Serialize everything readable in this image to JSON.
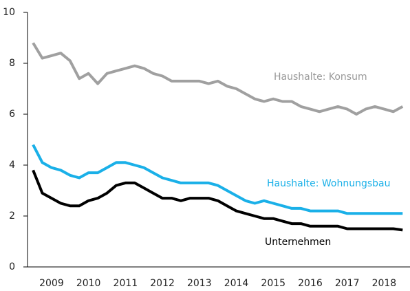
{
  "chart_data": {
    "type": "line",
    "x": [
      2009,
      2009.25,
      2009.5,
      2009.75,
      2010,
      2010.25,
      2010.5,
      2010.75,
      2011,
      2011.25,
      2011.5,
      2011.75,
      2012,
      2012.25,
      2012.5,
      2012.75,
      2013,
      2013.25,
      2013.5,
      2013.75,
      2014,
      2014.25,
      2014.5,
      2014.75,
      2015,
      2015.25,
      2015.5,
      2015.75,
      2016,
      2016.25,
      2016.5,
      2016.75,
      2017,
      2017.25,
      2017.5,
      2017.75,
      2018,
      2018.25,
      2018.5,
      2018.75,
      2019
    ],
    "xlim": [
      2008.85,
      2019.2
    ],
    "xticks": [
      {
        "value": 2009.5,
        "label": "2009"
      },
      {
        "value": 2010.5,
        "label": "2010"
      },
      {
        "value": 2011.5,
        "label": "2011"
      },
      {
        "value": 2012.5,
        "label": "2012"
      },
      {
        "value": 2013.5,
        "label": "2013"
      },
      {
        "value": 2014.5,
        "label": "2014"
      },
      {
        "value": 2015.5,
        "label": "2015"
      },
      {
        "value": 2016.5,
        "label": "2016"
      },
      {
        "value": 2017.5,
        "label": "2017"
      },
      {
        "value": 2018.5,
        "label": "2018"
      }
    ],
    "ylim": [
      0,
      10
    ],
    "yticks": [
      0,
      2,
      4,
      6,
      8,
      10
    ],
    "series": [
      {
        "name": "Haushalte: Konsum",
        "color": "#a0a0a0",
        "values": [
          8.8,
          8.2,
          8.3,
          8.4,
          8.1,
          7.4,
          7.6,
          7.2,
          7.6,
          7.7,
          7.8,
          7.9,
          7.8,
          7.6,
          7.5,
          7.3,
          7.3,
          7.3,
          7.3,
          7.2,
          7.3,
          7.1,
          7.0,
          6.8,
          6.6,
          6.5,
          6.6,
          6.5,
          6.5,
          6.3,
          6.2,
          6.1,
          6.2,
          6.3,
          6.2,
          6.0,
          6.2,
          6.3,
          6.2,
          6.1,
          6.3
        ]
      },
      {
        "name": "Haushalte: Wohnungsbau",
        "color": "#1ab0e8",
        "values": [
          4.8,
          4.1,
          3.9,
          3.8,
          3.6,
          3.5,
          3.7,
          3.7,
          3.9,
          4.1,
          4.1,
          4.0,
          3.9,
          3.7,
          3.5,
          3.4,
          3.3,
          3.3,
          3.3,
          3.3,
          3.2,
          3.0,
          2.8,
          2.6,
          2.5,
          2.6,
          2.5,
          2.4,
          2.3,
          2.3,
          2.2,
          2.2,
          2.2,
          2.2,
          2.1,
          2.1,
          2.1,
          2.1,
          2.1,
          2.1,
          2.1
        ]
      },
      {
        "name": "Unternehmen",
        "color": "#000000",
        "values": [
          3.8,
          2.9,
          2.7,
          2.5,
          2.4,
          2.4,
          2.6,
          2.7,
          2.9,
          3.2,
          3.3,
          3.3,
          3.1,
          2.9,
          2.7,
          2.7,
          2.6,
          2.7,
          2.7,
          2.7,
          2.6,
          2.4,
          2.2,
          2.1,
          2.0,
          1.9,
          1.9,
          1.8,
          1.7,
          1.7,
          1.6,
          1.6,
          1.6,
          1.6,
          1.5,
          1.5,
          1.5,
          1.5,
          1.5,
          1.5,
          1.45
        ]
      }
    ]
  }
}
